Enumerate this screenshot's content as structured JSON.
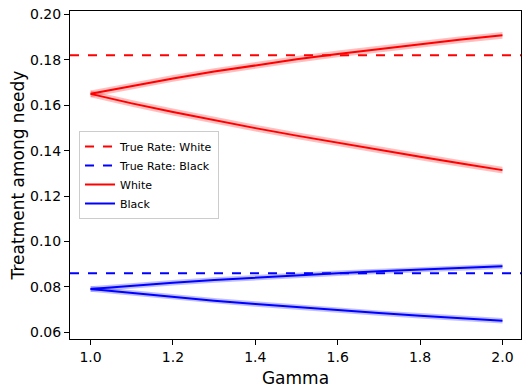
{
  "chart_data": {
    "type": "line",
    "x_label": "Gamma",
    "y_label": "Treatment among needy",
    "x": [
      1.0,
      1.1,
      1.2,
      1.3,
      1.4,
      1.5,
      1.6,
      1.7,
      1.8,
      1.9,
      2.0
    ],
    "xlim": [
      0.95,
      2.045
    ],
    "xticks": [
      {
        "value": 1.0,
        "label": "1.0"
      },
      1.2,
      1.4,
      1.6,
      1.8,
      {
        "value": 2.0,
        "label": "2.0"
      }
    ],
    "ylim": [
      0.057,
      0.2015
    ],
    "yticks": [
      0.06,
      0.08,
      {
        "value": 0.1,
        "label": "0.10"
      },
      0.12,
      0.14,
      0.16,
      0.18,
      {
        "value": 0.2,
        "label": "0.20"
      }
    ],
    "grid": false,
    "legend": "center left",
    "reference_lines": [
      {
        "name": "True Rate: White",
        "color": "#ff0000",
        "line_style": "dashed",
        "value": 0.182
      },
      {
        "name": "True Rate: Black",
        "color": "#0000ff",
        "line_style": "dashed",
        "value": 0.086
      }
    ],
    "series": [
      {
        "name": "White",
        "color": "#ff0000",
        "line_style": "solid",
        "error": 0.0015,
        "upper": [
          0.165,
          0.1685,
          0.1718,
          0.1748,
          0.1776,
          0.1802,
          0.1826,
          0.1848,
          0.1869,
          0.1889,
          0.1908
        ],
        "lower": [
          0.165,
          0.1608,
          0.157,
          0.1534,
          0.1499,
          0.1466,
          0.1434,
          0.1403,
          0.1373,
          0.1343,
          0.1314
        ]
      },
      {
        "name": "Black",
        "color": "#0000ff",
        "line_style": "solid",
        "error": 0.0012,
        "upper": [
          0.079,
          0.0805,
          0.0818,
          0.083,
          0.0841,
          0.0851,
          0.086,
          0.0868,
          0.0876,
          0.0883,
          0.089
        ],
        "lower": [
          0.079,
          0.0772,
          0.0755,
          0.0739,
          0.0724,
          0.071,
          0.0697,
          0.0684,
          0.0672,
          0.0661,
          0.065
        ]
      }
    ]
  }
}
